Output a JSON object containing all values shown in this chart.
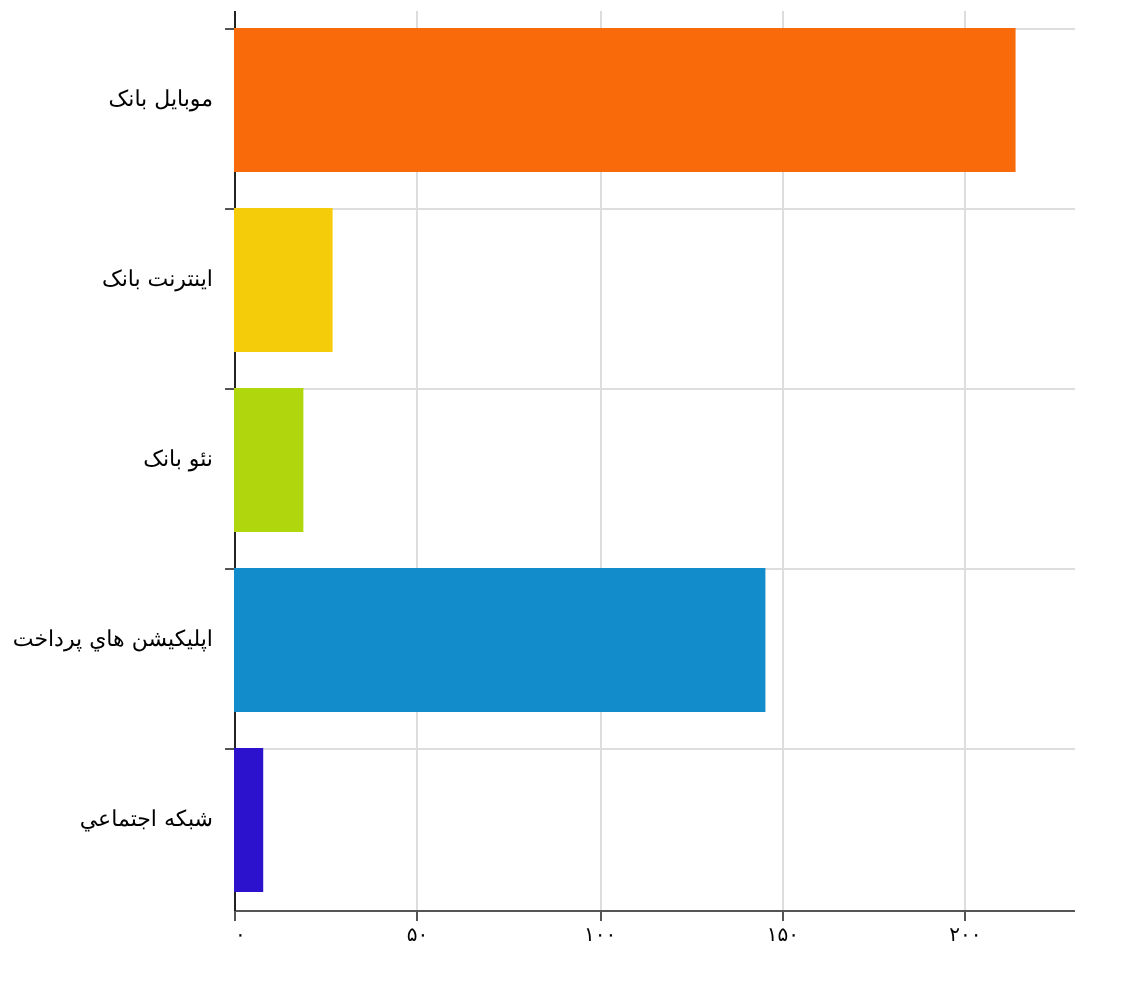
{
  "chart_data": {
    "type": "bar",
    "orientation": "horizontal",
    "categories": [
      "موبایل بانک",
      "اینترنت بانک",
      "نئو بانک",
      "اپلیکیشن هاي پرداخت",
      "شبکه اجتماعي"
    ],
    "values": [
      214,
      27,
      19,
      145.5,
      8
    ],
    "colors": [
      "#f96a0a",
      "#f5cc0a",
      "#b0d60e",
      "#138ccb",
      "#2c12cc"
    ],
    "xlim": [
      0,
      230
    ],
    "xticks": [
      {
        "value": 0,
        "label": "۰"
      },
      {
        "value": 50,
        "label": "۵۰"
      },
      {
        "value": 100,
        "label": "۱۰۰"
      },
      {
        "value": 150,
        "label": "۱۵۰"
      },
      {
        "value": 200,
        "label": "۲۰۰"
      }
    ],
    "grid": true
  }
}
